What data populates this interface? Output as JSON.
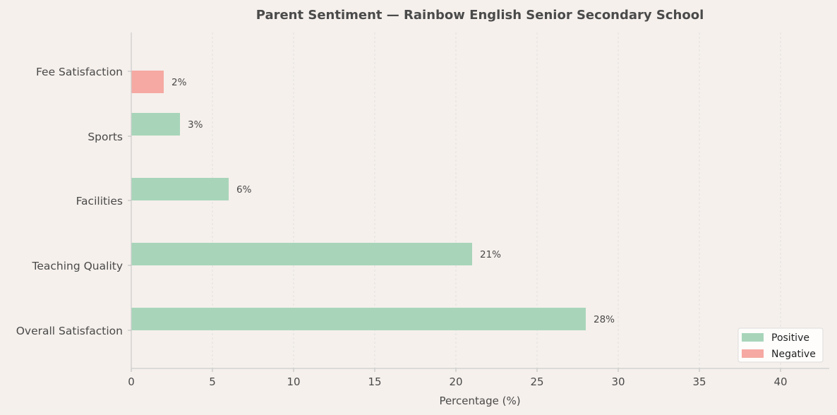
{
  "chart_data": {
    "type": "bar",
    "orientation": "horizontal",
    "title": "Parent Sentiment — Rainbow English Senior Secondary School",
    "xlabel": "Percentage (%)",
    "ylabel": "",
    "xlim": [
      0,
      43
    ],
    "xticks": [
      0,
      5,
      10,
      15,
      20,
      25,
      30,
      35,
      40
    ],
    "grid": "vertical dashed",
    "legend_position": "bottom-right",
    "categories": [
      "Overall Satisfaction",
      "Teaching Quality",
      "Facilities",
      "Sports",
      "Fee Satisfaction"
    ],
    "series": [
      {
        "name": "Positive",
        "color": "#a8d5ba",
        "values": [
          28,
          21,
          6,
          3,
          null
        ],
        "labels": [
          "28%",
          "21%",
          "6%",
          "3%",
          null
        ]
      },
      {
        "name": "Negative",
        "color": "#f5a9a2",
        "values": [
          null,
          null,
          null,
          null,
          2
        ],
        "labels": [
          null,
          null,
          null,
          null,
          "2%"
        ]
      }
    ]
  },
  "colors": {
    "background": "#f5f0ec",
    "axis": "#cccccc",
    "grid": "#dddddd",
    "text": "#4a4a4a"
  }
}
